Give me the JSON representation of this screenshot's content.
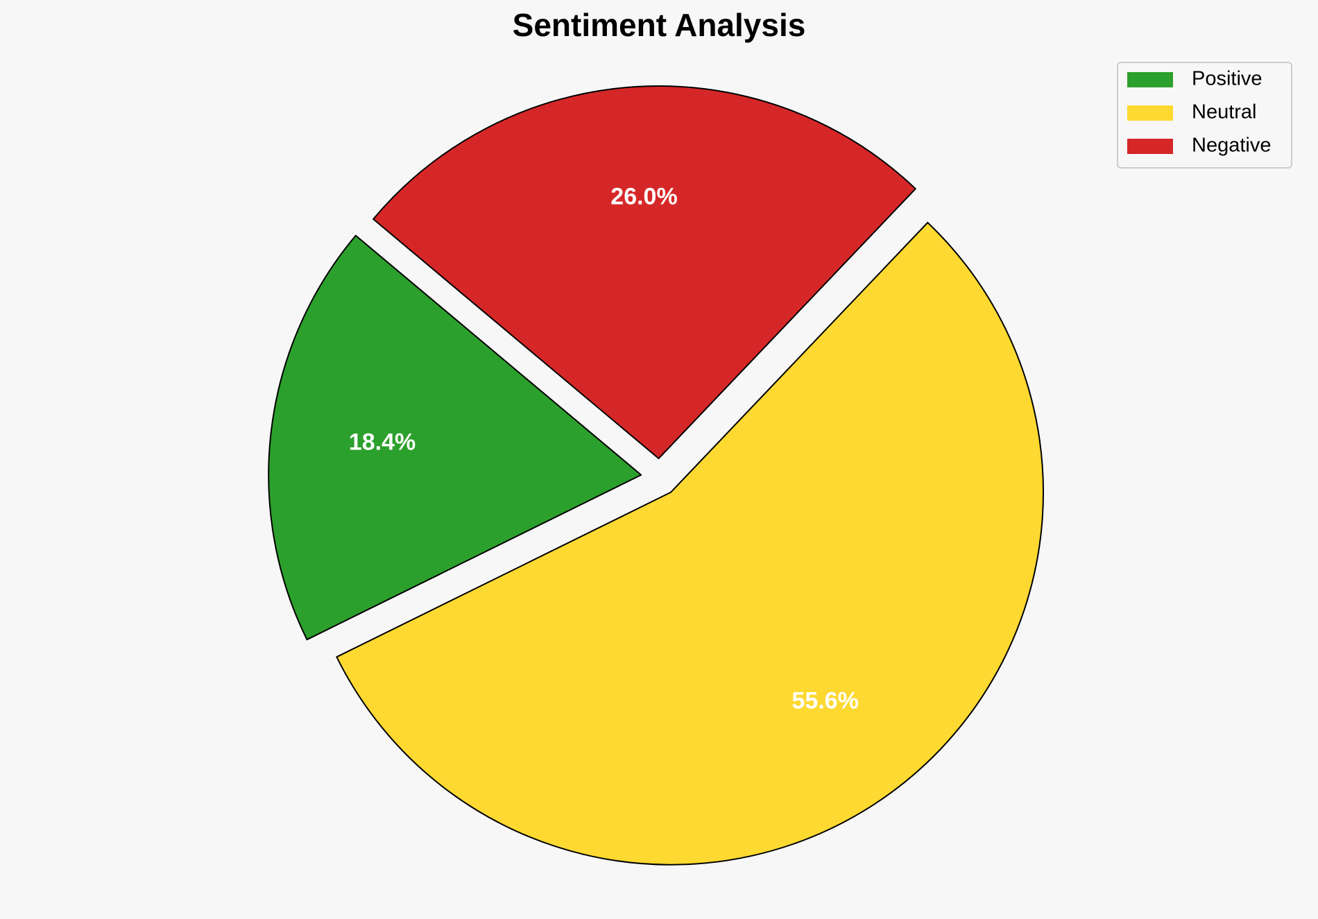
{
  "chart_data": {
    "type": "pie",
    "title": "Sentiment Analysis",
    "categories": [
      "Positive",
      "Neutral",
      "Negative"
    ],
    "values": [
      18.4,
      55.6,
      26.0
    ],
    "value_labels": [
      "18.4%",
      "55.6%",
      "26.0%"
    ],
    "colors": [
      "#2ca02c",
      "#fdd931",
      "#d62728"
    ],
    "startangle": 140,
    "legend": "upper right"
  }
}
